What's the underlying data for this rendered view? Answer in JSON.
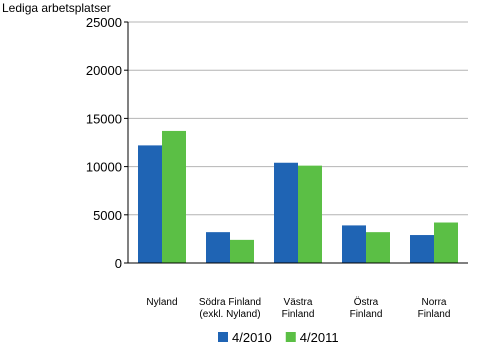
{
  "chart_data": {
    "type": "bar",
    "title": "Lediga arbetsplatser",
    "categories": [
      "Nyland",
      "Södra Finland\n(exkl. Nyland)",
      "Västra\nFinland",
      "Östra\nFinland",
      "Norra\nFinland"
    ],
    "series": [
      {
        "name": "4/2010",
        "color": "#1f64b4",
        "values": [
          12200,
          3200,
          10400,
          3900,
          2900
        ]
      },
      {
        "name": "4/2011",
        "color": "#5bbf45",
        "values": [
          13700,
          2400,
          10100,
          3200,
          4200
        ]
      }
    ],
    "ylim": [
      0,
      25000
    ],
    "yticks": [
      0,
      5000,
      10000,
      15000,
      20000,
      25000
    ],
    "grid": true
  }
}
